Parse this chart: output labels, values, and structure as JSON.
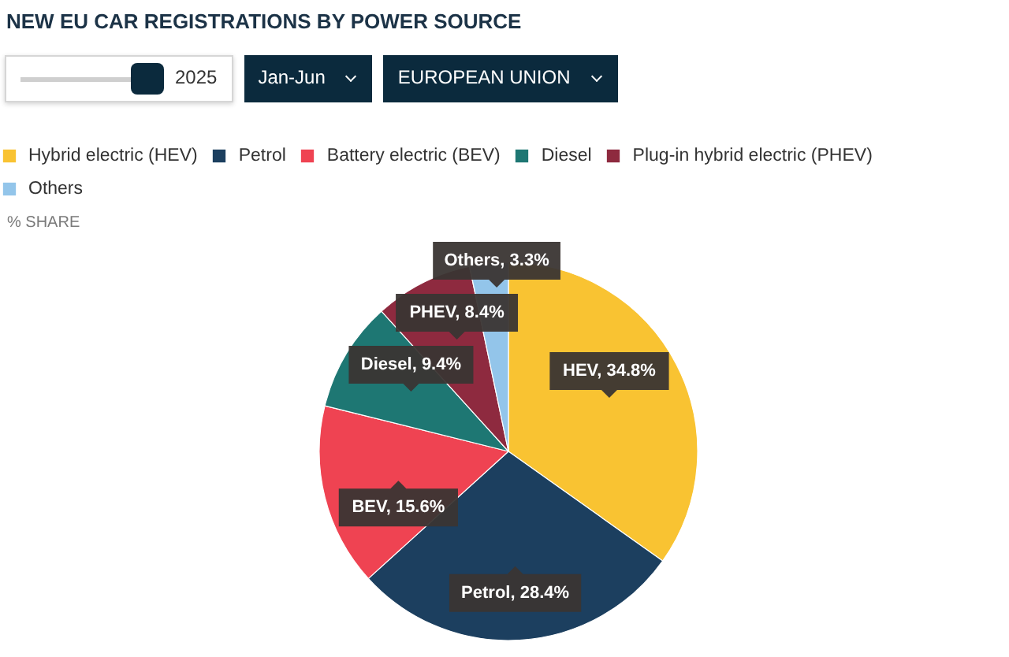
{
  "chart_data": {
    "type": "pie",
    "title": "NEW EU CAR REGISTRATIONS BY POWER SOURCE",
    "subtitle": "% SHARE",
    "categories": [
      "Hybrid electric (HEV)",
      "Petrol",
      "Battery electric (BEV)",
      "Diesel",
      "Plug-in hybrid electric (PHEV)",
      "Others"
    ],
    "values": [
      34.8,
      28.4,
      15.6,
      9.4,
      8.4,
      3.3
    ],
    "colors": [
      "#f9c332",
      "#1c3f5f",
      "#ef4352",
      "#1e7773",
      "#8e2a3f",
      "#93c5ea"
    ],
    "value_labels": [
      "HEV, 34.8%",
      "Petrol, 28.4%",
      "BEV, 15.6%",
      "Diesel, 9.4%",
      "PHEV, 8.4%",
      "Others, 3.3%"
    ],
    "legend": "top left",
    "annotations": [
      "2025",
      "Jan-Jun",
      "EUROPEAN UNION"
    ]
  }
}
